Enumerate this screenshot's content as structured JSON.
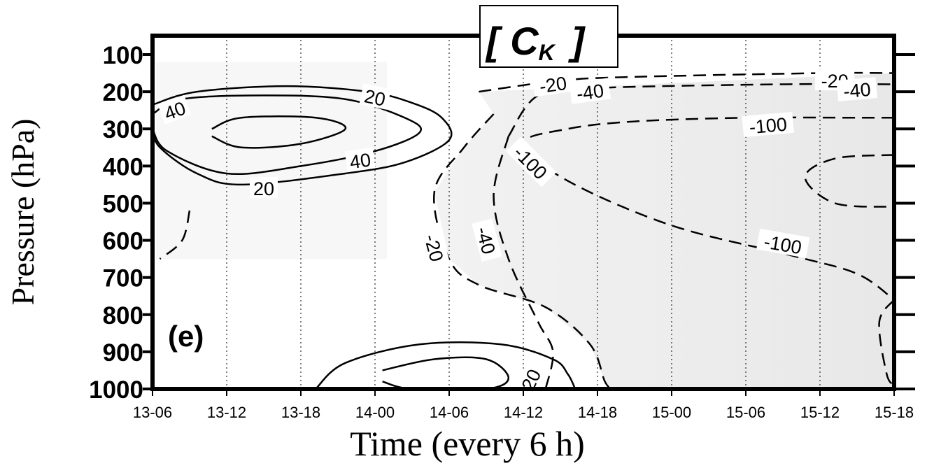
{
  "chart_data": {
    "type": "contour",
    "title": "[ C",
    "title_subscript": "K",
    "title_close": "]",
    "panel_label": "(e)",
    "xlabel": "Time  (every 6 h)",
    "ylabel": "Pressure (hPa)",
    "x_ticks": [
      "13-06",
      "13-12",
      "13-18",
      "14-00",
      "14-06",
      "14-12",
      "14-18",
      "15-00",
      "15-06",
      "15-12",
      "15-18"
    ],
    "y_ticks": [
      100,
      200,
      300,
      400,
      500,
      600,
      700,
      800,
      900,
      1000
    ],
    "ylim": [
      1000,
      100
    ],
    "y_reversed": true,
    "grid": "vertical dotted lines at each time tick",
    "shading": "negative values shaded light gray",
    "contours": [
      {
        "level": 40,
        "style": "solid",
        "points": [
          [
            0.0,
            260
          ],
          [
            0.4,
            220
          ],
          [
            1.5,
            210
          ],
          [
            2.6,
            220
          ],
          [
            3.4,
            270
          ],
          [
            3.6,
            310
          ],
          [
            3.0,
            360
          ],
          [
            2.0,
            400
          ],
          [
            1.0,
            420
          ],
          [
            0.2,
            360
          ],
          [
            0.0,
            300
          ]
        ]
      },
      {
        "level": 40,
        "style": "solid",
        "points": [
          [
            0.8,
            300
          ],
          [
            1.2,
            270
          ],
          [
            2.2,
            270
          ],
          [
            2.6,
            300
          ],
          [
            2.0,
            340
          ],
          [
            1.2,
            350
          ],
          [
            0.8,
            320
          ]
        ]
      },
      {
        "level": 20,
        "style": "solid",
        "points": [
          [
            0.0,
            235
          ],
          [
            0.6,
            200
          ],
          [
            1.8,
            185
          ],
          [
            2.9,
            200
          ],
          [
            3.5,
            230
          ],
          [
            3.9,
            270
          ],
          [
            4.0,
            330
          ],
          [
            3.4,
            390
          ],
          [
            2.6,
            420
          ],
          [
            1.2,
            450
          ],
          [
            0.6,
            420
          ],
          [
            0.1,
            350
          ],
          [
            0.0,
            300
          ]
        ]
      },
      {
        "level": 20,
        "style": "solid",
        "points": [
          [
            2.2,
            1000
          ],
          [
            2.6,
            930
          ],
          [
            3.6,
            880
          ],
          [
            4.7,
            880
          ],
          [
            5.4,
            920
          ],
          [
            5.6,
            960
          ],
          [
            5.7,
            1000
          ]
        ]
      },
      {
        "level": 20,
        "style": "solid",
        "points": [
          [
            3.1,
            950
          ],
          [
            3.8,
            920
          ],
          [
            4.5,
            920
          ],
          [
            4.8,
            970
          ],
          [
            4.5,
            1000
          ],
          [
            3.5,
            1000
          ],
          [
            3.1,
            980
          ]
        ]
      },
      {
        "level": -20,
        "style": "dashed",
        "points": [
          [
            0.5,
            520
          ],
          [
            0.4,
            600
          ],
          [
            0.1,
            650
          ]
        ]
      },
      {
        "level": -20,
        "style": "dashed",
        "points": [
          [
            4.4,
            200
          ],
          [
            5.5,
            170
          ],
          [
            6.5,
            160
          ],
          [
            9.0,
            150
          ],
          [
            10.0,
            150
          ]
        ]
      },
      {
        "level": -20,
        "style": "dashed",
        "points": [
          [
            4.6,
            260
          ],
          [
            4.2,
            350
          ],
          [
            3.8,
            470
          ],
          [
            4.0,
            650
          ],
          [
            4.4,
            720
          ],
          [
            5.3,
            780
          ],
          [
            5.9,
            880
          ],
          [
            6.1,
            980
          ],
          [
            6.2,
            1000
          ]
        ]
      },
      {
        "level": -40,
        "style": "dashed",
        "points": [
          [
            4.8,
            320
          ],
          [
            5.2,
            210
          ],
          [
            6.0,
            190
          ],
          [
            8.5,
            180
          ],
          [
            10.0,
            180
          ]
        ]
      },
      {
        "level": -40,
        "style": "dashed",
        "points": [
          [
            4.8,
            320
          ],
          [
            4.6,
            480
          ],
          [
            4.8,
            650
          ],
          [
            5.2,
            820
          ],
          [
            5.4,
            900
          ],
          [
            5.3,
            1000
          ]
        ]
      },
      {
        "level": -100,
        "style": "dashed",
        "points": [
          [
            10.0,
            270
          ],
          [
            9.5,
            270
          ],
          [
            8.0,
            270
          ],
          [
            6.5,
            280
          ],
          [
            5.6,
            300
          ],
          [
            5.0,
            340
          ],
          [
            5.6,
            440
          ],
          [
            7.0,
            560
          ],
          [
            8.6,
            640
          ],
          [
            9.5,
            690
          ],
          [
            10.0,
            760
          ]
        ]
      },
      {
        "level": -100,
        "style": "dashed",
        "points": [
          [
            10.0,
            370
          ],
          [
            9.2,
            380
          ],
          [
            8.8,
            430
          ],
          [
            9.2,
            500
          ],
          [
            10.0,
            510
          ]
        ]
      },
      {
        "level": -100,
        "style": "dashed",
        "points": [
          [
            10.0,
            760
          ],
          [
            9.8,
            820
          ],
          [
            9.9,
            960
          ],
          [
            10.0,
            990
          ]
        ]
      }
    ],
    "contour_labels": [
      {
        "text": "40",
        "x": 0.3,
        "y": 250,
        "angle": -20
      },
      {
        "text": "20",
        "x": 3.0,
        "y": 215,
        "angle": 12
      },
      {
        "text": "40",
        "x": 2.8,
        "y": 385,
        "angle": -8
      },
      {
        "text": "20",
        "x": 1.5,
        "y": 460,
        "angle": 0
      },
      {
        "text": "20",
        "x": 5.1,
        "y": 975,
        "angle": -65
      },
      {
        "text": "-20",
        "x": 5.4,
        "y": 180,
        "angle": -8
      },
      {
        "text": "-40",
        "x": 5.9,
        "y": 200,
        "angle": -8
      },
      {
        "text": "-20",
        "x": 9.2,
        "y": 170,
        "angle": 0
      },
      {
        "text": "-40",
        "x": 9.5,
        "y": 195,
        "angle": -5
      },
      {
        "text": "-100",
        "x": 8.3,
        "y": 290,
        "angle": -5
      },
      {
        "text": "-100",
        "x": 5.1,
        "y": 390,
        "angle": 45
      },
      {
        "text": "-100",
        "x": 8.5,
        "y": 610,
        "angle": 10
      },
      {
        "text": "-20",
        "x": 3.8,
        "y": 620,
        "angle": 75
      },
      {
        "text": "-40",
        "x": 4.5,
        "y": 600,
        "angle": 75
      }
    ]
  }
}
